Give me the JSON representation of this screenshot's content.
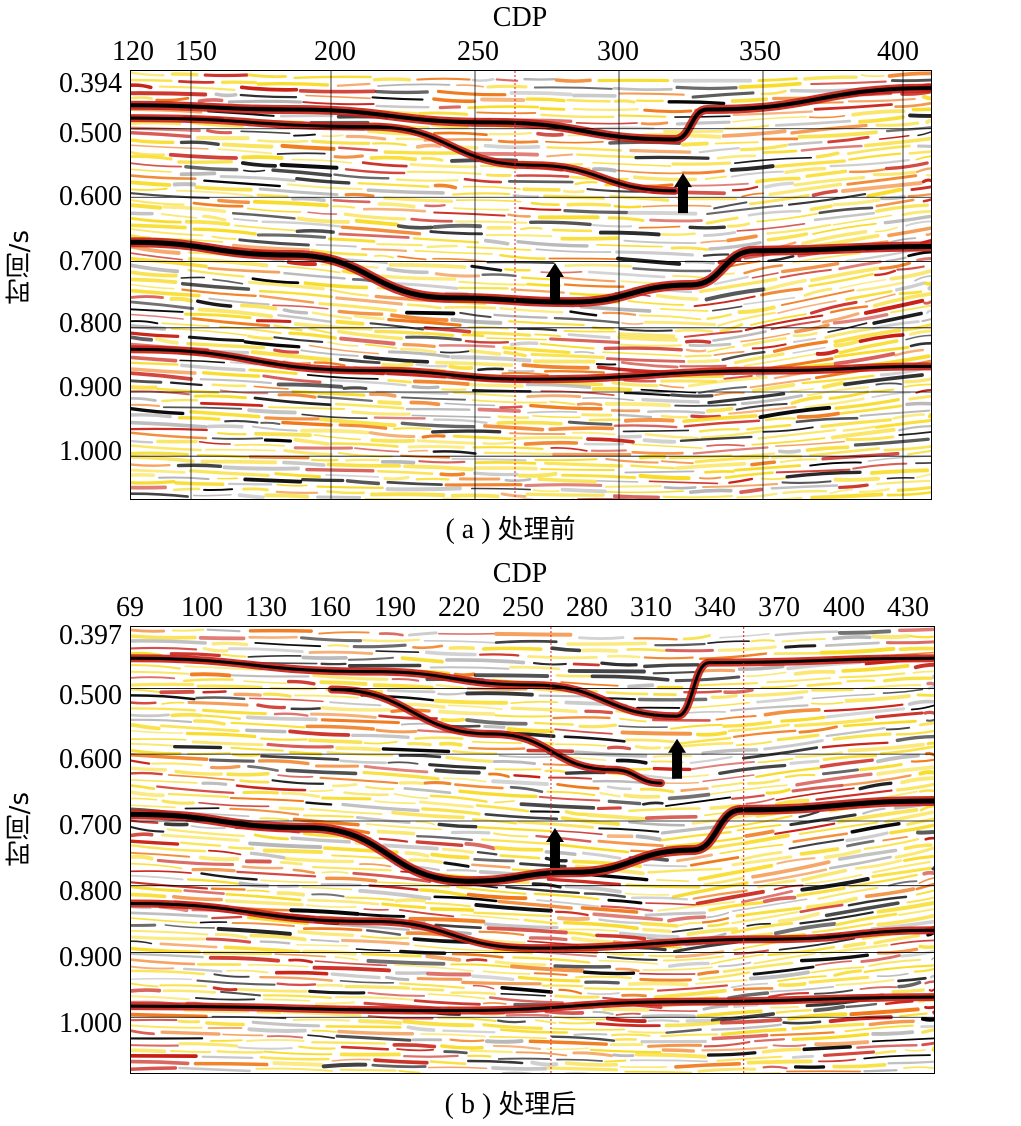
{
  "panels": [
    {
      "id": "a",
      "x_title": "CDP",
      "x_ticks": [
        "120",
        "150",
        "200",
        "250",
        "300",
        "350",
        "400"
      ],
      "y_title": "时间/s",
      "y_ticks": [
        "0.394",
        "0.500",
        "0.600",
        "0.700",
        "0.800",
        "0.900",
        "1.000"
      ],
      "caption_prefix": "( a )",
      "caption": "处理前",
      "arrows": 2
    },
    {
      "id": "b",
      "x_title": "CDP",
      "x_ticks": [
        "69",
        "100",
        "130",
        "160",
        "190",
        "220",
        "250",
        "280",
        "310",
        "340",
        "370",
        "400",
        "430"
      ],
      "y_title": "时间/s",
      "y_ticks": [
        "0.397",
        "0.500",
        "0.600",
        "0.700",
        "0.800",
        "0.900",
        "1.000"
      ],
      "caption_prefix": "( b )",
      "caption": "处理后",
      "arrows": 2
    }
  ],
  "colors": {
    "trough": "#000000",
    "peak_strong": "#c81e14",
    "peak_mid": "#f07818",
    "peak_weak": "#f8dc28",
    "neutral": "#ffffff",
    "grey": "#b4b4b4"
  },
  "icons": [
    "up-arrow-icon"
  ]
}
